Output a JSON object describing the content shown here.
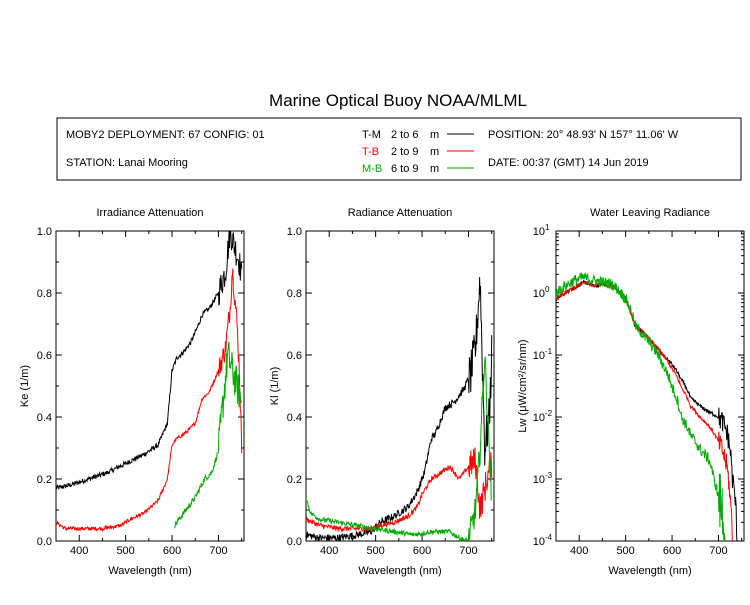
{
  "title": "Marine Optical Buoy NOAA/MLML",
  "info": {
    "deployment": "MOBY2 DEPLOYMENT: 67 CONFIG: 01",
    "station": "STATION: Lanai Mooring",
    "position": "POSITION: 20° 48.93' N   157° 11.06' W",
    "date": "DATE: 00:37 (GMT) 14 Jun 2019"
  },
  "legend": [
    {
      "key": "T-M",
      "range": "2 to 6",
      "unit": "m",
      "color": "#000000"
    },
    {
      "key": "T-B",
      "range": "2 to 9",
      "unit": "m",
      "color": "#ff0000"
    },
    {
      "key": "M-B",
      "range": "6 to 9",
      "unit": "m",
      "color": "#00aa00"
    }
  ],
  "chart_data": [
    {
      "type": "line",
      "title": "Irradiance Attenuation",
      "xlabel": "Wavelength (nm)",
      "ylabel": "Ke  (1/m)",
      "xlim": [
        350,
        755
      ],
      "ylim": [
        0,
        1.0
      ],
      "x_ticks": [
        "400",
        "500",
        "600",
        "700"
      ],
      "y_ticks": [
        "0.0",
        "0.2",
        "0.4",
        "0.6",
        "0.8",
        "1.0"
      ],
      "series": [
        {
          "key": "T-M",
          "color": "#000000",
          "x": [
            350,
            380,
            420,
            460,
            500,
            540,
            570,
            590,
            600,
            610,
            625,
            640,
            655,
            665,
            680,
            700,
            715,
            725,
            735,
            745,
            750
          ],
          "y": [
            0.17,
            0.18,
            0.2,
            0.22,
            0.25,
            0.28,
            0.31,
            0.38,
            0.55,
            0.59,
            0.61,
            0.64,
            0.69,
            0.73,
            0.75,
            0.8,
            0.87,
            1.0,
            0.95,
            0.9,
            0.85
          ],
          "noise": 0.008
        },
        {
          "key": "T-B",
          "color": "#ff0000",
          "x": [
            350,
            370,
            400,
            450,
            490,
            510,
            540,
            570,
            590,
            600,
            610,
            630,
            650,
            665,
            680,
            700,
            715,
            725,
            730,
            740,
            745,
            750
          ],
          "y": [
            0.06,
            0.04,
            0.04,
            0.04,
            0.05,
            0.07,
            0.09,
            0.13,
            0.2,
            0.31,
            0.33,
            0.35,
            0.38,
            0.46,
            0.48,
            0.55,
            0.62,
            0.75,
            0.88,
            0.7,
            0.55,
            0.3
          ],
          "noise": 0.006
        },
        {
          "key": "M-B",
          "color": "#00aa00",
          "x": [
            605,
            615,
            630,
            650,
            670,
            685,
            700,
            710,
            720,
            730,
            740,
            750
          ],
          "y": [
            0.05,
            0.07,
            0.1,
            0.14,
            0.2,
            0.22,
            0.29,
            0.45,
            0.6,
            0.55,
            0.5,
            0.45
          ],
          "noise": 0.01
        }
      ]
    },
    {
      "type": "line",
      "title": "Radiance Attenuation",
      "xlabel": "Wavelength (nm)",
      "ylabel": "Kl  (1/m)",
      "xlim": [
        350,
        755
      ],
      "ylim": [
        0,
        1.0
      ],
      "x_ticks": [
        "400",
        "500",
        "600",
        "700"
      ],
      "y_ticks": [
        "0.0",
        "0.2",
        "0.4",
        "0.6",
        "0.8",
        "1.0"
      ],
      "series": [
        {
          "key": "T-M",
          "color": "#000000",
          "x": [
            350,
            380,
            420,
            460,
            490,
            510,
            540,
            570,
            590,
            605,
            620,
            630,
            650,
            670,
            690,
            705,
            715,
            725,
            735,
            745,
            750
          ],
          "y": [
            0.02,
            0.01,
            0.01,
            0.02,
            0.03,
            0.06,
            0.08,
            0.11,
            0.16,
            0.22,
            0.33,
            0.35,
            0.43,
            0.45,
            0.49,
            0.54,
            0.62,
            0.85,
            0.3,
            0.4,
            0.6
          ],
          "noise": 0.012
        },
        {
          "key": "T-B",
          "color": "#ff0000",
          "x": [
            350,
            380,
            420,
            460,
            490,
            510,
            540,
            570,
            590,
            600,
            620,
            640,
            660,
            680,
            700,
            715,
            725,
            740,
            750
          ],
          "y": [
            0.07,
            0.05,
            0.04,
            0.04,
            0.04,
            0.05,
            0.06,
            0.08,
            0.11,
            0.15,
            0.2,
            0.22,
            0.24,
            0.2,
            0.24,
            0.26,
            0.1,
            0.2,
            0.25
          ],
          "noise": 0.008
        },
        {
          "key": "M-B",
          "color": "#00aa00",
          "x": [
            350,
            360,
            380,
            420,
            460,
            500,
            540,
            580,
            620,
            660,
            680,
            700,
            715,
            725,
            735,
            745,
            750
          ],
          "y": [
            0.14,
            0.09,
            0.07,
            0.06,
            0.05,
            0.04,
            0.03,
            0.02,
            0.03,
            0.03,
            0.01,
            0.0,
            0.1,
            0.3,
            0.6,
            0.3,
            0.1
          ],
          "noise": 0.008
        }
      ]
    },
    {
      "type": "line",
      "title": "Water Leaving Radiance",
      "xlabel": "Wavelength (nm)",
      "ylabel": "Lw  (μW/cm²/sr/nm)",
      "xlim": [
        350,
        755
      ],
      "ylim": [
        0.0001,
        10
      ],
      "yscale": "log",
      "x_ticks": [
        "400",
        "500",
        "600",
        "700"
      ],
      "y_ticks": [
        {
          "base": "10",
          "exp": "1"
        },
        {
          "base": "10",
          "exp": "0"
        },
        {
          "base": "10",
          "exp": "-1"
        },
        {
          "base": "10",
          "exp": "-2"
        },
        {
          "base": "10",
          "exp": "-3"
        },
        {
          "base": "10",
          "exp": "-4"
        }
      ],
      "series": [
        {
          "key": "T-M",
          "color": "#000000",
          "x": [
            350,
            370,
            390,
            410,
            430,
            450,
            470,
            490,
            500,
            510,
            520,
            540,
            560,
            580,
            600,
            620,
            640,
            660,
            680,
            700,
            710,
            720,
            730,
            740
          ],
          "y": [
            0.8,
            1.0,
            1.2,
            1.5,
            1.3,
            1.4,
            1.3,
            1.0,
            0.8,
            0.5,
            0.3,
            0.22,
            0.15,
            0.1,
            0.07,
            0.04,
            0.02,
            0.015,
            0.012,
            0.01,
            0.008,
            0.005,
            0.001,
            0.0001
          ],
          "noise": 0.03
        },
        {
          "key": "T-B",
          "color": "#ff0000",
          "x": [
            350,
            370,
            390,
            410,
            430,
            450,
            470,
            490,
            500,
            510,
            520,
            540,
            560,
            580,
            600,
            620,
            640,
            660,
            680,
            700,
            715,
            725,
            730
          ],
          "y": [
            0.8,
            1.0,
            1.2,
            1.5,
            1.3,
            1.4,
            1.3,
            1.0,
            0.8,
            0.5,
            0.3,
            0.22,
            0.15,
            0.1,
            0.06,
            0.03,
            0.015,
            0.01,
            0.007,
            0.004,
            0.002,
            0.0005,
            0.0001
          ],
          "noise": 0.03
        },
        {
          "key": "M-B",
          "color": "#00aa00",
          "x": [
            350,
            370,
            390,
            410,
            430,
            450,
            470,
            490,
            500,
            510,
            520,
            540,
            560,
            580,
            600,
            620,
            640,
            660,
            670,
            680,
            690,
            700,
            710,
            715
          ],
          "y": [
            1.0,
            1.3,
            1.6,
            1.8,
            1.6,
            1.5,
            1.4,
            1.0,
            0.8,
            0.55,
            0.3,
            0.2,
            0.13,
            0.07,
            0.03,
            0.01,
            0.005,
            0.003,
            0.0025,
            0.002,
            0.001,
            0.0005,
            0.00025,
            0.0001
          ],
          "noise": 0.09
        }
      ]
    }
  ]
}
